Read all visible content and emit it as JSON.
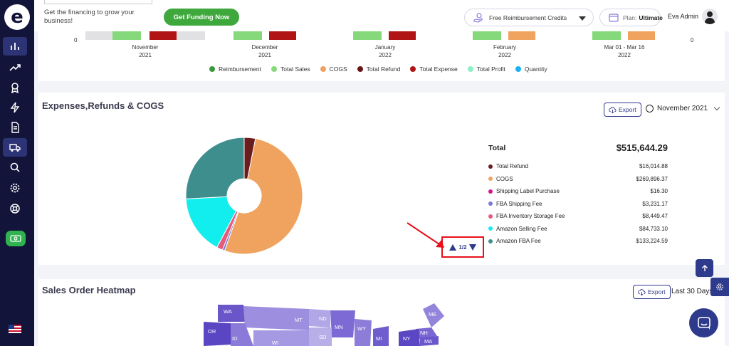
{
  "sidebar": {
    "logo_letter": "e",
    "items": [
      {
        "name": "analytics",
        "icon": "bar-chart-icon",
        "active": true
      },
      {
        "name": "trends",
        "icon": "trending-up-icon",
        "active": false
      },
      {
        "name": "awards",
        "icon": "award-icon",
        "active": false
      },
      {
        "name": "automation",
        "icon": "lightning-icon",
        "active": false
      },
      {
        "name": "documents",
        "icon": "document-icon",
        "active": false
      },
      {
        "name": "shipping",
        "icon": "truck-icon",
        "active": true
      },
      {
        "name": "search",
        "icon": "search-icon",
        "active": false
      },
      {
        "name": "settings",
        "icon": "gear-icon",
        "active": false
      },
      {
        "name": "support",
        "icon": "lifebuoy-icon",
        "active": false
      }
    ],
    "badge_icon": "cash-icon",
    "flag_icon": "us-flag-icon"
  },
  "header": {
    "promo_text": "Get the financing to grow your business!",
    "funding_button": "Get Funding Now",
    "reimbursement_select": "Free Reimbursement Credits",
    "plan_label": "Plan:",
    "plan_value": "Ultimate",
    "user_name": "Eva Admin"
  },
  "top_chart": {
    "axis_left": "0",
    "axis_right": "0",
    "months": [
      {
        "label": "November",
        "year": "2021"
      },
      {
        "label": "December",
        "year": "2021"
      },
      {
        "label": "January",
        "year": "2022"
      },
      {
        "label": "February",
        "year": "2022"
      },
      {
        "label": "Mar 01 - Mar 16",
        "year": "2022"
      }
    ],
    "legend": [
      {
        "label": "Reimbursement",
        "color": "#3a9a3a"
      },
      {
        "label": "Total Sales",
        "color": "#86d97a"
      },
      {
        "label": "COGS",
        "color": "#f0a35e"
      },
      {
        "label": "Total Refund",
        "color": "#6b1414"
      },
      {
        "label": "Total Expense",
        "color": "#b01414"
      },
      {
        "label": "Total Profit",
        "color": "#8ff0c8"
      },
      {
        "label": "Quantity",
        "color": "#1ab3f0"
      }
    ]
  },
  "expenses": {
    "title": "Expenses,Refunds & COGS",
    "export_label": "Export",
    "date_label": "November 2021",
    "total_label": "Total",
    "total_value": "$515,644.29",
    "pager": "1/2",
    "items": [
      {
        "label": "Total Refund",
        "value": "$16,014.88",
        "amount": 16014.88,
        "color": "#6b1c1c"
      },
      {
        "label": "COGS",
        "value": "$269,896.37",
        "amount": 269896.37,
        "color": "#f0a35e"
      },
      {
        "label": "Shipping Label Purchase",
        "value": "$16.30",
        "amount": 16.3,
        "color": "#d6138e"
      },
      {
        "label": "FBA Shipping Fee",
        "value": "$3,231.17",
        "amount": 3231.17,
        "color": "#7a7ad6"
      },
      {
        "label": "FBA Inventory Storage Fee",
        "value": "$8,449.47",
        "amount": 8449.47,
        "color": "#e65a7a"
      },
      {
        "label": "Amazon Selling Fee",
        "value": "$84,733.10",
        "amount": 84733.1,
        "color": "#12eded"
      },
      {
        "label": "Amazon FBA Fee",
        "value": "$133,224.59",
        "amount": 133224.59,
        "color": "#3f8e8e"
      }
    ]
  },
  "heatmap": {
    "title": "Sales Order Heatmap",
    "export_label": "Export",
    "range_label": "Last 30 Days",
    "states": [
      "WA",
      "MT",
      "ND",
      "MN",
      "OR",
      "ID",
      "SD",
      "WI",
      "WY",
      "MI",
      "ME",
      "NH",
      "NY",
      "MA"
    ]
  }
}
